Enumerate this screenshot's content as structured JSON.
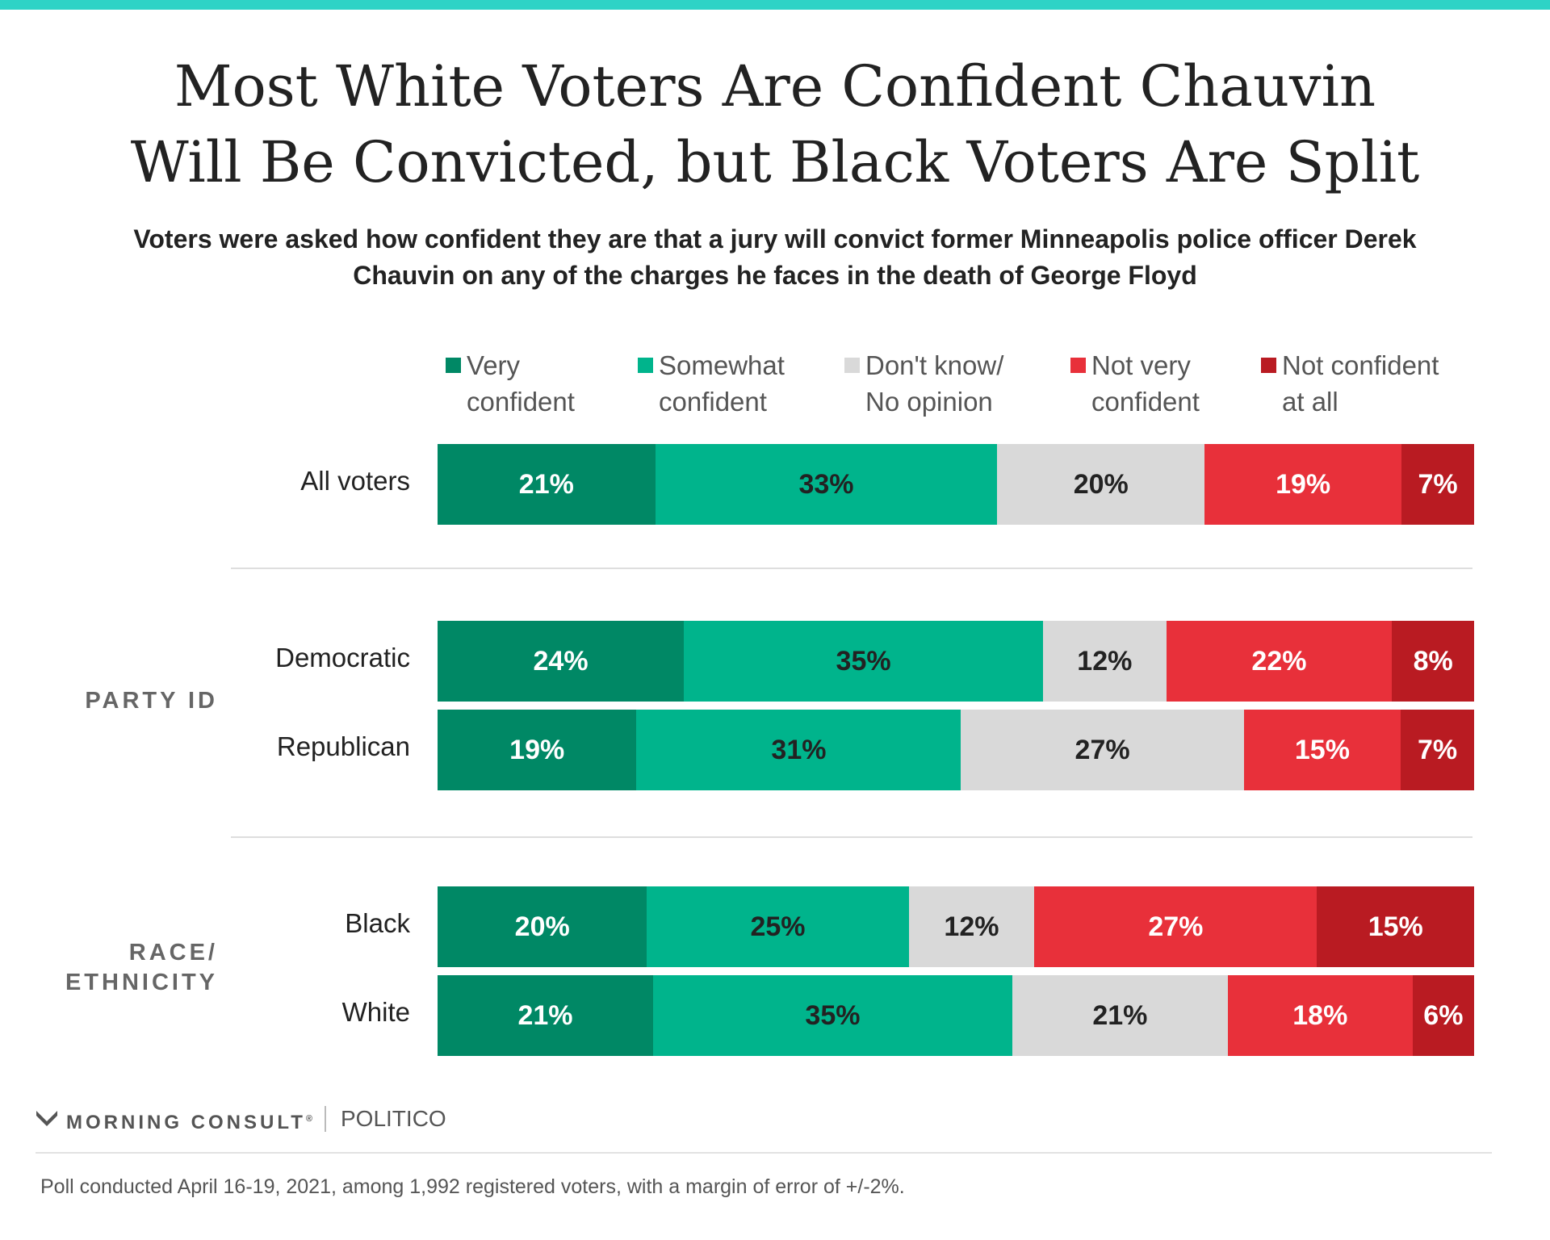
{
  "colors": {
    "top_bar": "#2ed3c6",
    "very_confident": "#008865",
    "somewhat_confident": "#00b48c",
    "dont_know": "#d9d9d9",
    "not_very_confident": "#e8303a",
    "not_confident_at_all": "#b91b22",
    "label_light": "#ffffff",
    "label_dark": "#222222"
  },
  "chart_data": {
    "type": "bar",
    "orientation": "horizontal",
    "stacked": true,
    "title": "Most White Voters Are Confident Chauvin Will Be Convicted, but Black Voters Are Split",
    "subtitle": "Voters were asked how confident they are that a jury will convict former Minneapolis police officer Derek Chauvin on any of the charges he faces in the death of George Floyd",
    "legend_position": "top",
    "categories": [
      "All voters",
      "Democratic",
      "Republican",
      "Black",
      "White"
    ],
    "groups": [
      {
        "label": "",
        "rows": [
          "All voters"
        ]
      },
      {
        "label": "PARTY ID",
        "rows": [
          "Democratic",
          "Republican"
        ]
      },
      {
        "label": "RACE/ ETHNICITY",
        "rows": [
          "Black",
          "White"
        ]
      }
    ],
    "series": [
      {
        "name": "Very confident",
        "legend": "Very\nconfident",
        "color_key": "very_confident",
        "text_color_key": "label_light",
        "values": [
          21,
          24,
          19,
          20,
          21
        ]
      },
      {
        "name": "Somewhat confident",
        "legend": "Somewhat\nconfident",
        "color_key": "somewhat_confident",
        "text_color_key": "label_dark",
        "values": [
          33,
          35,
          31,
          25,
          35
        ]
      },
      {
        "name": "Don't know/ No opinion",
        "legend": "Don't know/\nNo opinion",
        "color_key": "dont_know",
        "text_color_key": "label_dark",
        "values": [
          20,
          12,
          27,
          12,
          21
        ]
      },
      {
        "name": "Not very confident",
        "legend": "Not very\nconfident",
        "color_key": "not_very_confident",
        "text_color_key": "label_light",
        "values": [
          19,
          22,
          15,
          27,
          18
        ]
      },
      {
        "name": "Not confident at all",
        "legend": "Not confident\nat all",
        "color_key": "not_confident_at_all",
        "text_color_key": "label_light",
        "values": [
          7,
          8,
          7,
          15,
          6
        ]
      }
    ],
    "value_suffix": "%"
  },
  "footer": {
    "brand": "MORNING CONSULT",
    "brand_mark": "®",
    "partner": "POLITICO",
    "note": "Poll conducted April 16-19, 2021, among 1,992 registered voters, with a margin of error of +/-2%."
  }
}
